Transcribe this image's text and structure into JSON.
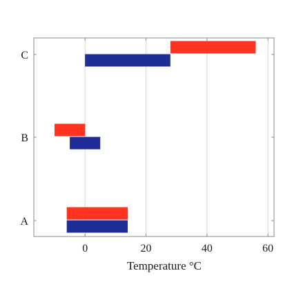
{
  "chart_data": {
    "type": "bar",
    "orientation": "horizontal",
    "title": "",
    "xlabel": "Temperature °C",
    "ylabel": "",
    "xlim": [
      -16.8,
      62
    ],
    "xticks": [
      0,
      20,
      40,
      60
    ],
    "xtick_labels": [
      "0",
      "20",
      "40",
      "60"
    ],
    "categories": [
      "A",
      "B",
      "C"
    ],
    "grid": "vertical",
    "legend": "none",
    "series": [
      {
        "color": "#1f2d96",
        "ranges": [
          [
            -6,
            14
          ],
          [
            -5,
            5
          ],
          [
            0,
            28
          ]
        ]
      },
      {
        "color": "#ff3320",
        "ranges": [
          [
            -6,
            14
          ],
          [
            -10,
            0
          ],
          [
            28,
            56
          ]
        ]
      }
    ]
  }
}
